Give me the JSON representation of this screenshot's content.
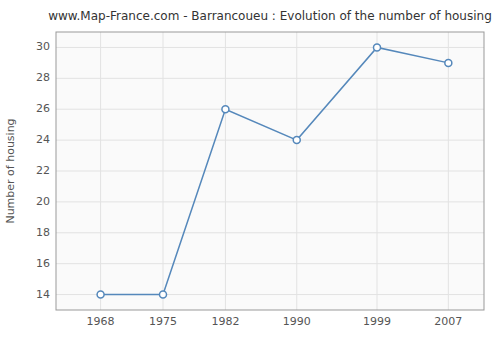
{
  "chart_data": {
    "type": "line",
    "title": "www.Map-France.com - Barrancoueu : Evolution of the number of housing",
    "ylabel": "Number of housing",
    "x": [
      1968,
      1975,
      1982,
      1990,
      1999,
      2007
    ],
    "values": [
      14,
      14,
      26,
      24,
      30,
      29
    ],
    "color": "#5588bb",
    "marker": "circle",
    "xlim": [
      1963,
      2011
    ],
    "xticks": [
      1968,
      1975,
      1982,
      1990,
      1999,
      2007
    ],
    "ylim": [
      13,
      31
    ],
    "yticks": [
      14,
      16,
      18,
      20,
      22,
      24,
      26,
      28,
      30
    ],
    "grid": true
  }
}
